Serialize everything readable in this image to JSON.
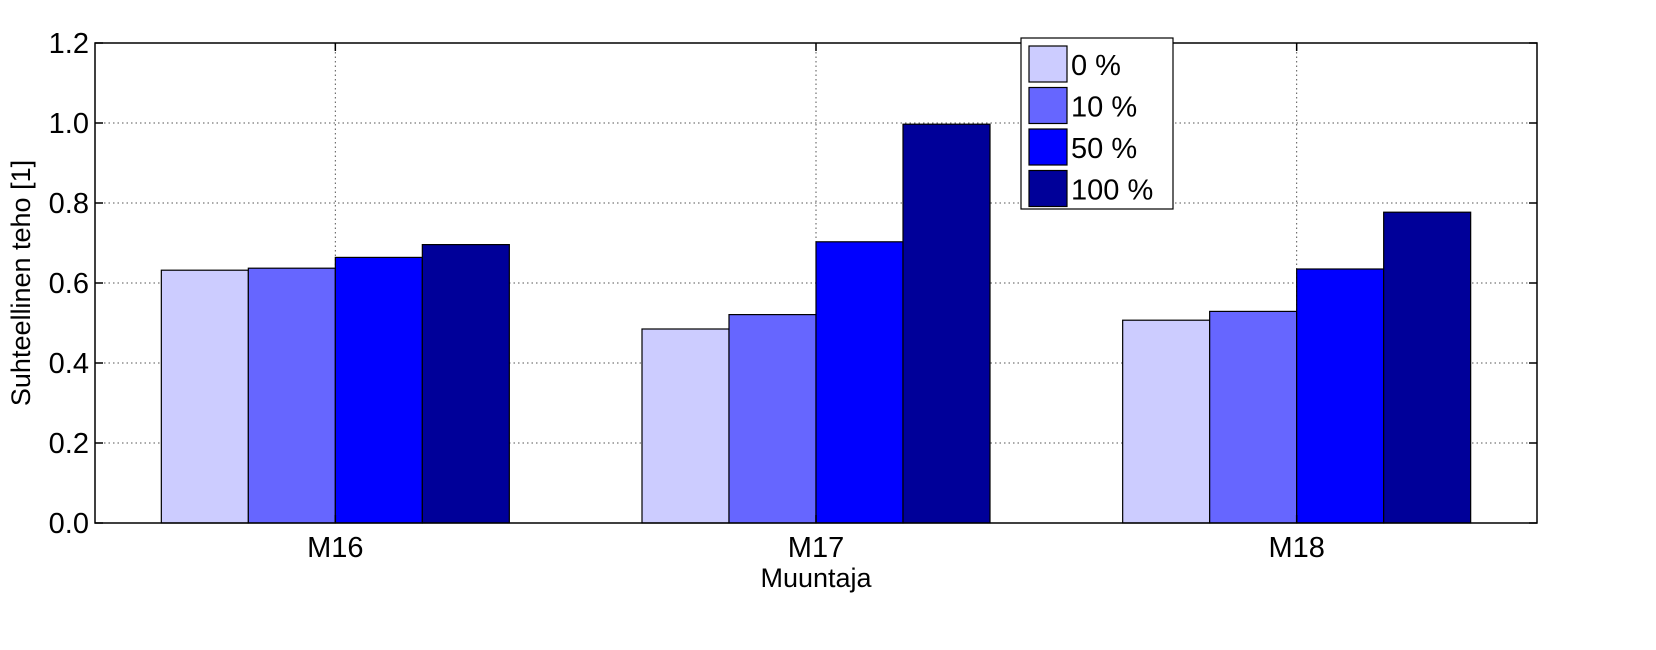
{
  "chart_data": {
    "type": "bar",
    "title": "",
    "xlabel": "Muuntaja",
    "ylabel": "Suhteellinen teho [1]",
    "categories": [
      "M16",
      "M17",
      "M18"
    ],
    "series": [
      {
        "name": "0 %",
        "color": "#CCCCFF",
        "values": [
          0.632,
          0.485,
          0.507
        ]
      },
      {
        "name": "10 %",
        "color": "#6666FF",
        "values": [
          0.637,
          0.521,
          0.529
        ]
      },
      {
        "name": "50 %",
        "color": "#0000FF",
        "values": [
          0.664,
          0.703,
          0.635
        ]
      },
      {
        "name": "100 %",
        "color": "#000099",
        "values": [
          0.696,
          0.997,
          0.777
        ]
      }
    ],
    "ylim": [
      0,
      1.2
    ],
    "yticks": [
      "0.0",
      "0.2",
      "0.4",
      "0.6",
      "0.8",
      "1.0",
      "1.2"
    ],
    "grid": true,
    "legend_position": "top-right"
  }
}
